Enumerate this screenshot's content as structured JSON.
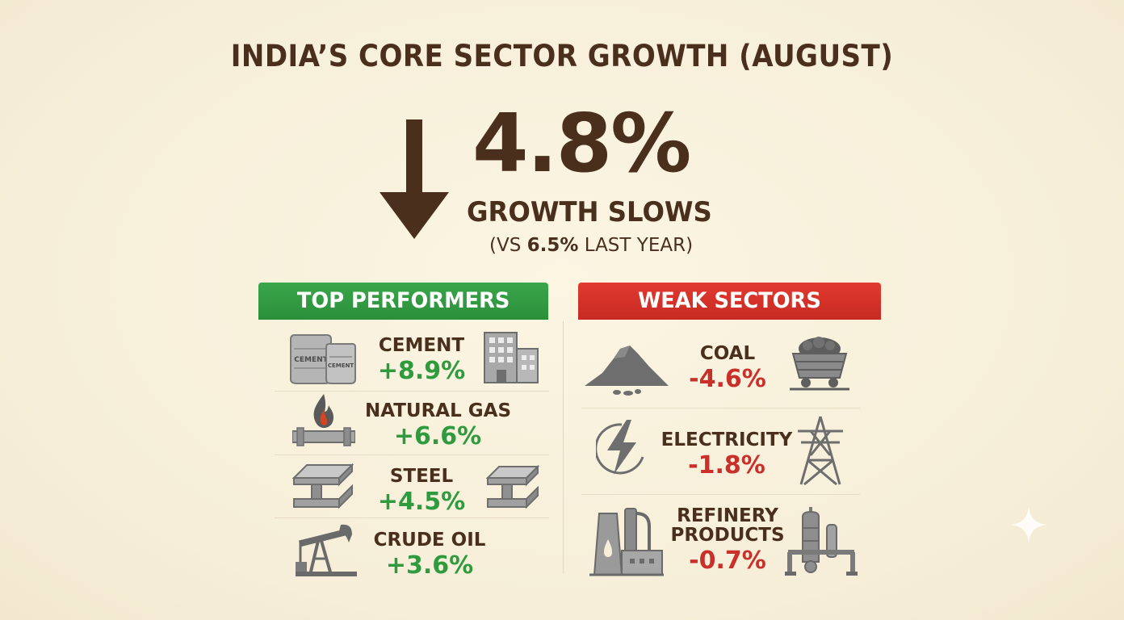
{
  "title": "INDIA’S CORE SECTOR GROWTH (AUGUST)",
  "headline": {
    "value": "4.8%",
    "subtitle": "GROWTH SLOWS",
    "compare_prefix": "(VS ",
    "compare_value": "6.5%",
    "compare_suffix": " LAST YEAR)",
    "arrow_icon": "arrow-down-icon"
  },
  "top_performers": {
    "heading": "TOP PERFORMERS",
    "color": "#2f9a3e",
    "items": [
      {
        "label": "CEMENT",
        "value": "+8.9%",
        "icons": [
          "cement-bags-icon",
          "building-icon"
        ],
        "bag_text_1": "CEMENT",
        "bag_text_2": "CEMENT"
      },
      {
        "label": "NATURAL GAS",
        "value": "+6.6%",
        "icons": [
          "gas-flame-pipeline-icon"
        ]
      },
      {
        "label": "STEEL",
        "value": "+4.5%",
        "icons": [
          "steel-beam-icon",
          "steel-beam-icon"
        ]
      },
      {
        "label": "CRUDE OIL",
        "value": "+3.6%",
        "icons": [
          "oil-pump-jack-icon"
        ]
      }
    ]
  },
  "weak_sectors": {
    "heading": "WEAK SECTORS",
    "color": "#c9302a",
    "items": [
      {
        "label": "COAL",
        "value": "-4.6%",
        "icons": [
          "coal-pile-icon",
          "coal-cart-icon"
        ]
      },
      {
        "label": "ELECTRICITY",
        "value": "-1.8%",
        "icons": [
          "lightning-bolt-icon",
          "power-tower-icon"
        ]
      },
      {
        "label_line1": "REFINERY",
        "label_line2": "PRODUCTS",
        "value": "-0.7%",
        "icons": [
          "refinery-icon",
          "distillation-column-icon"
        ]
      }
    ]
  }
}
